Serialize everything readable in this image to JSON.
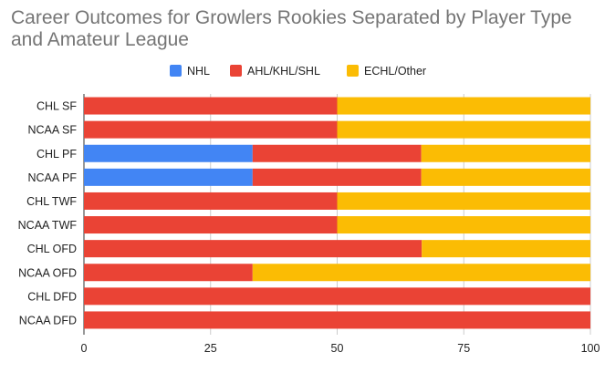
{
  "chart_data": {
    "type": "bar",
    "orientation": "horizontal",
    "stacked": true,
    "title": "Career Outcomes for Growlers Rookies Separated by Player Type and Amateur League",
    "xlabel": "",
    "ylabel": "",
    "xlim": [
      0,
      100
    ],
    "x_ticks": [
      "0",
      "25",
      "50",
      "75",
      "100"
    ],
    "grid": true,
    "legend_position": "top",
    "categories": [
      "CHL SF",
      "NCAA SF",
      "CHL PF",
      "NCAA PF",
      "CHL TWF",
      "NCAA TWF",
      "CHL OFD",
      "NCAA OFD",
      "CHL DFD",
      "NCAA DFD"
    ],
    "series": [
      {
        "name": "NHL",
        "color": "#4285f4",
        "values": [
          0,
          0,
          33.3,
          33.3,
          0,
          0,
          0,
          0,
          0,
          0
        ]
      },
      {
        "name": "AHL/KHL/SHL",
        "color": "#ea4335",
        "values": [
          50,
          50,
          33.3,
          33.3,
          50,
          50,
          66.7,
          33.3,
          100,
          100
        ]
      },
      {
        "name": "ECHL/Other",
        "color": "#fbbc04",
        "values": [
          50,
          50,
          33.4,
          33.4,
          50,
          50,
          33.3,
          66.7,
          0,
          0
        ]
      }
    ]
  }
}
